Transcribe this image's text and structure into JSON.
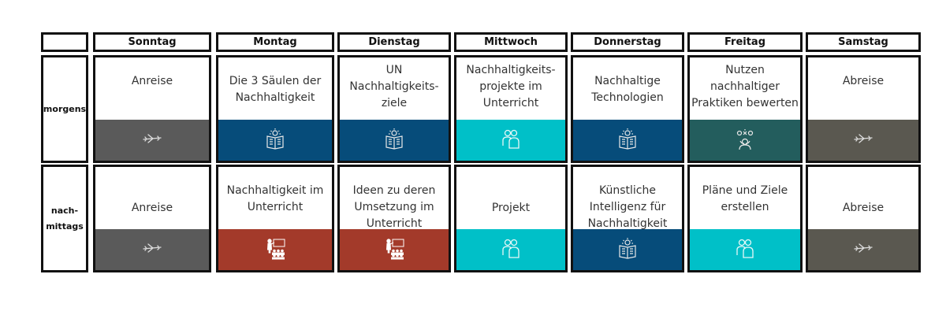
{
  "days": [
    "Sonntag",
    "Montag",
    "Dienstag",
    "Mittwoch",
    "Donnerstag",
    "Freitag",
    "Samstag"
  ],
  "rows": [
    {
      "label": "morgens",
      "cells": [
        {
          "text": "Anreise",
          "color": "#5a5a5a",
          "icon": "airplane-icon"
        },
        {
          "text": "Die 3 Säulen der\nNachhaltigkeit",
          "color": "#064c7a",
          "icon": "book-lightbulb-icon"
        },
        {
          "text": "UN\nNachhaltigkeits-\nziele",
          "color": "#064c7a",
          "icon": "book-lightbulb-icon"
        },
        {
          "text": "Nachhaltigkeits-\nprojekte im\nUnterricht",
          "color": "#00c0c8",
          "icon": "group-icon"
        },
        {
          "text": "Nachhaltige\nTechnologien",
          "color": "#064c7a",
          "icon": "book-lightbulb-icon"
        },
        {
          "text": "Nutzen\nnachhaltiger\nPraktiken bewerten",
          "color": "#235d5d",
          "icon": "thinking-person-icon"
        },
        {
          "text": "Abreise",
          "color": "#5a5850",
          "icon": "airplane-icon"
        }
      ]
    },
    {
      "label": "nach-\nmittags",
      "cells": [
        {
          "text": "Anreise",
          "color": "#5a5a5a",
          "icon": "airplane-icon"
        },
        {
          "text": "Nachhaltigkeit im\nUnterricht",
          "color": "#a33a2a",
          "icon": "teacher-class-icon"
        },
        {
          "text": "Ideen zu deren\nUmsetzung im\nUnterricht",
          "color": "#a33a2a",
          "icon": "teacher-class-icon"
        },
        {
          "text": "Projekt",
          "color": "#00c0c8",
          "icon": "group-icon"
        },
        {
          "text": "Künstliche\nIntelligenz für\nNachhaltigkeit",
          "color": "#064c7a",
          "icon": "book-lightbulb-icon"
        },
        {
          "text": "Pläne und Ziele\nerstellen",
          "color": "#00c0c8",
          "icon": "group-icon"
        },
        {
          "text": "Abreise",
          "color": "#5a5850",
          "icon": "airplane-icon"
        }
      ]
    }
  ]
}
